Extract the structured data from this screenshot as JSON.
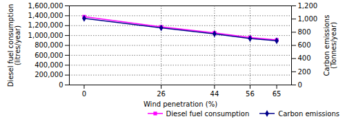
{
  "chart_data": {
    "type": "line",
    "x": [
      0,
      26,
      44,
      56,
      65
    ],
    "xlabel": "Wind penetration (%)",
    "ylabel": "Diesel fuel consumption\n(litres/year)",
    "y2label": "Carbon emissions\n(Tonnes/year)",
    "series": [
      {
        "name": "Diesel fuel consumption",
        "color": "#ff00ff",
        "marker": "square",
        "line_style": "solid",
        "values": [
          1380000,
          1175000,
          1055000,
          960000,
          910000
        ]
      },
      {
        "name": "Carbon emissions",
        "color": "#00008b",
        "marker": "diamond",
        "line_style": "solid",
        "axis": "y2",
        "values": [
          1010,
          865,
          775,
          705,
          670
        ]
      }
    ],
    "xlim": [
      -5,
      70
    ],
    "xticks": [
      0,
      26,
      44,
      56,
      65
    ],
    "ylim": [
      0,
      1600000
    ],
    "yticks": [
      0,
      {
        "value": 200000,
        "label": "200,000"
      },
      {
        "value": 400000,
        "label": "400,000"
      },
      {
        "value": 600000,
        "label": "600,000"
      },
      {
        "value": 800000,
        "label": "800,000"
      },
      {
        "value": 1000000,
        "label": "1,000,000"
      },
      {
        "value": 1200000,
        "label": "1,200,000"
      },
      {
        "value": 1400000,
        "label": "1,400,000"
      },
      {
        "value": 1600000,
        "label": "1,600,000"
      }
    ],
    "y2lim": [
      0,
      1200
    ],
    "y2ticks": [
      0,
      200,
      400,
      600,
      800,
      {
        "value": 1000,
        "label": "1,000"
      },
      {
        "value": 1200,
        "label": "1,200"
      }
    ],
    "grid": true,
    "vlines": [
      26,
      44,
      56
    ],
    "legend": "lower right"
  }
}
